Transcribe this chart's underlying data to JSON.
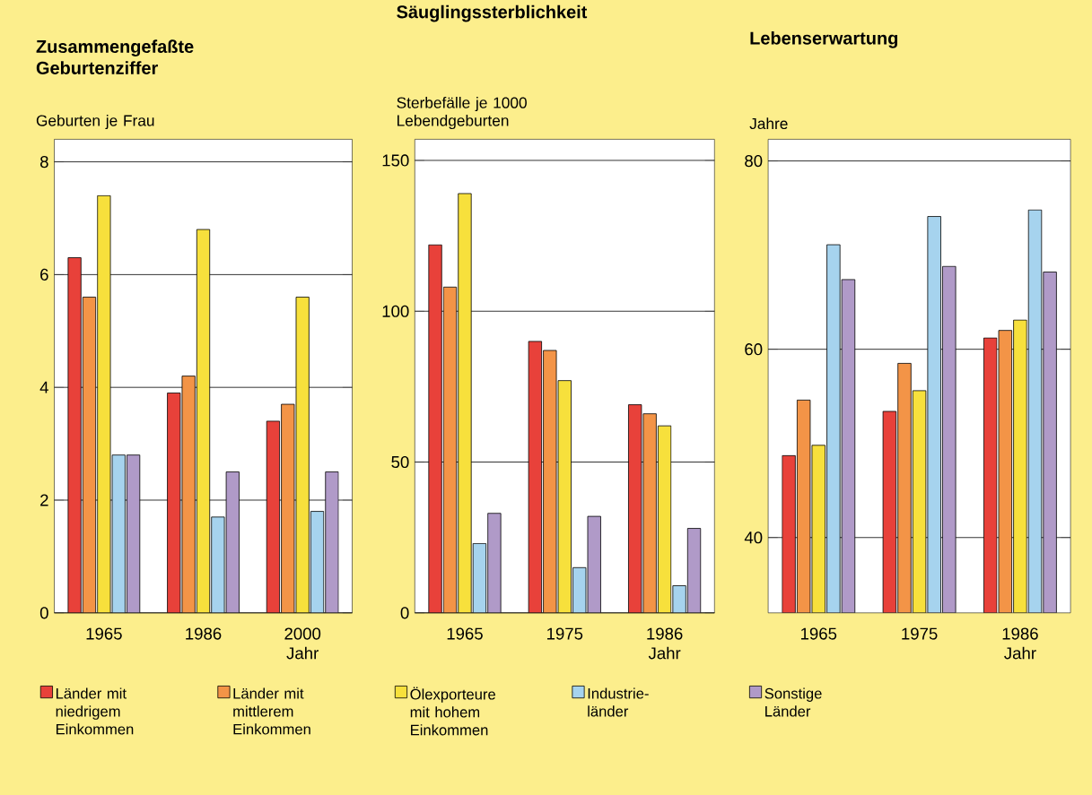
{
  "chart_data": [
    {
      "type": "bar",
      "title": "Zusammengefaßte Geburtenziffer",
      "ylabel": "Geburten je Frau",
      "xlabel": "Jahr",
      "categories": [
        "1965",
        "1986",
        "2000"
      ],
      "ylim": [
        0,
        8.4
      ],
      "yticks": [
        0,
        2,
        4,
        6,
        8
      ],
      "grid": "y",
      "legend": "bottom",
      "series": [
        {
          "name": "Länder mit niedrigem Einkommen",
          "color": "#e8413a",
          "values": [
            6.3,
            3.9,
            3.4
          ]
        },
        {
          "name": "Länder mit mittlerem Einkommen",
          "color": "#f39447",
          "values": [
            5.6,
            4.2,
            3.7
          ]
        },
        {
          "name": "Ölexporteure mit hohem Einkommen",
          "color": "#f7e03c",
          "values": [
            7.4,
            6.8,
            5.6
          ]
        },
        {
          "name": "Industrie- länder",
          "color": "#a6d3ee",
          "values": [
            2.8,
            1.7,
            1.8
          ]
        },
        {
          "name": "Sonstige Länder",
          "color": "#b09ac8",
          "values": [
            2.8,
            2.5,
            2.5
          ]
        }
      ]
    },
    {
      "type": "bar",
      "title": "Säuglingssterblichkeit",
      "ylabel": "Sterbefälle je 1000 Lebendgeburten",
      "xlabel": "Jahr",
      "categories": [
        "1965",
        "1975",
        "1986"
      ],
      "ylim": [
        0,
        157
      ],
      "yticks": [
        0,
        50,
        100,
        150
      ],
      "grid": "y",
      "series": [
        {
          "color": "#e8413a",
          "values": [
            122,
            90,
            69
          ]
        },
        {
          "color": "#f39447",
          "values": [
            108,
            87,
            66
          ]
        },
        {
          "color": "#f7e03c",
          "values": [
            139,
            77,
            62
          ]
        },
        {
          "color": "#a6d3ee",
          "values": [
            23,
            15,
            9
          ]
        },
        {
          "color": "#b09ac8",
          "values": [
            33,
            32,
            28
          ]
        }
      ]
    },
    {
      "type": "bar",
      "title": "Lebenserwartung",
      "ylabel": "Jahre",
      "xlabel": "Jahr",
      "categories": [
        "1965",
        "1975",
        "1986"
      ],
      "ylim": [
        32,
        82.3
      ],
      "yticks": [
        40,
        60,
        80
      ],
      "grid": "y",
      "series": [
        {
          "color": "#e8413a",
          "values": [
            48.7,
            53.4,
            61.2
          ]
        },
        {
          "color": "#f39447",
          "values": [
            54.6,
            58.5,
            62.0
          ]
        },
        {
          "color": "#f7e03c",
          "values": [
            49.8,
            55.6,
            63.1
          ]
        },
        {
          "color": "#a6d3ee",
          "values": [
            71.1,
            74.1,
            74.8
          ]
        },
        {
          "color": "#b09ac8",
          "values": [
            67.4,
            68.8,
            68.2
          ]
        }
      ]
    }
  ]
}
